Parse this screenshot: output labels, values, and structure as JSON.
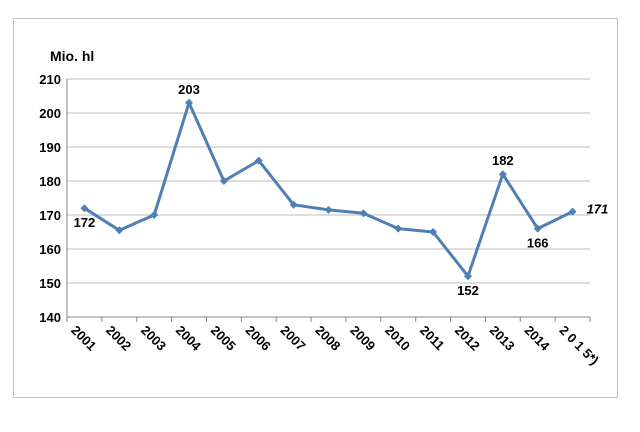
{
  "chart_data": {
    "type": "line",
    "unit_label": "Mio. hl",
    "x": [
      "2001",
      "2002",
      "2003",
      "2004",
      "2005",
      "2006",
      "2007",
      "2008",
      "2009",
      "2010",
      "2011",
      "2012",
      "2013",
      "2014",
      "2 0 1 5*)"
    ],
    "series": [
      {
        "values": [
          172,
          165.5,
          170,
          203,
          180,
          186,
          173,
          171.5,
          170.5,
          166,
          165,
          152,
          182,
          166,
          171
        ]
      }
    ],
    "ylim": [
      140,
      210
    ],
    "yticks": [
      "140",
      "150",
      "160",
      "170",
      "180",
      "190",
      "200",
      "210"
    ],
    "grid": true,
    "legend": "none",
    "line_color": "#4f7fb4",
    "data_labels": [
      {
        "index": 0,
        "text": "172",
        "position": "below"
      },
      {
        "index": 3,
        "text": "203",
        "position": "above"
      },
      {
        "index": 11,
        "text": "152",
        "position": "below"
      },
      {
        "index": 12,
        "text": "182",
        "position": "above"
      },
      {
        "index": 13,
        "text": "166",
        "position": "below"
      },
      {
        "index": 14,
        "text": "171",
        "position": "right",
        "italic": true
      }
    ]
  }
}
